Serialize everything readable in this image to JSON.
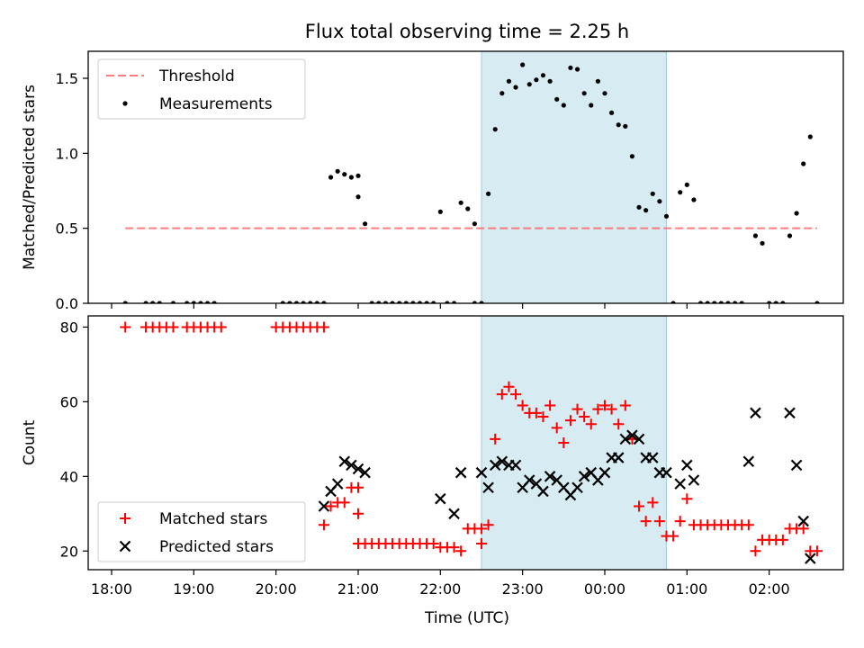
{
  "chart_data": {
    "type": "scatter",
    "title": "Flux total observing time = 2.25 h",
    "xlabel": "Time (UTC)",
    "x_ticks": [
      "18:00",
      "19:00",
      "20:00",
      "21:00",
      "22:00",
      "23:00",
      "00:00",
      "01:00",
      "02:00"
    ],
    "highlight_span": {
      "from": "22:30",
      "to": "00:45"
    },
    "panels": [
      {
        "ylabel": "Matched/Predicted stars",
        "ylim": [
          0,
          1.68
        ],
        "yticks": [
          "0.0",
          "0.5",
          "1.0",
          "1.5"
        ],
        "legend": "top-left",
        "threshold": {
          "name": "Threshold",
          "value": 0.5,
          "from": "18:10",
          "to": "02:35",
          "color": "#ff6666"
        },
        "series": [
          {
            "name": "Measurements",
            "color": "#000000",
            "points": [
              [
                "18:10",
                0
              ],
              [
                "18:25",
                0
              ],
              [
                "18:30",
                0
              ],
              [
                "18:35",
                0
              ],
              [
                "18:45",
                0
              ],
              [
                "18:55",
                0
              ],
              [
                "19:00",
                0
              ],
              [
                "19:05",
                0
              ],
              [
                "19:10",
                0
              ],
              [
                "19:15",
                0
              ],
              [
                "20:05",
                0
              ],
              [
                "20:10",
                0
              ],
              [
                "20:15",
                0
              ],
              [
                "20:20",
                0
              ],
              [
                "20:25",
                0
              ],
              [
                "20:30",
                0
              ],
              [
                "20:35",
                0
              ],
              [
                "20:40",
                0.84
              ],
              [
                "20:45",
                0.88
              ],
              [
                "20:50",
                0.86
              ],
              [
                "20:55",
                0.84
              ],
              [
                "21:00",
                0.85
              ],
              [
                "21:00",
                0.71
              ],
              [
                "21:05",
                0.53
              ],
              [
                "21:10",
                0
              ],
              [
                "21:15",
                0
              ],
              [
                "21:20",
                0
              ],
              [
                "21:25",
                0
              ],
              [
                "21:30",
                0
              ],
              [
                "21:35",
                0
              ],
              [
                "21:40",
                0
              ],
              [
                "21:45",
                0
              ],
              [
                "21:50",
                0
              ],
              [
                "21:55",
                0
              ],
              [
                "22:00",
                0.61
              ],
              [
                "22:05",
                0
              ],
              [
                "22:10",
                0
              ],
              [
                "22:15",
                0.67
              ],
              [
                "22:20",
                0.63
              ],
              [
                "22:25",
                0
              ],
              [
                "22:30",
                0
              ],
              [
                "22:25",
                0.53
              ],
              [
                "22:35",
                0.73
              ],
              [
                "22:40",
                1.16
              ],
              [
                "22:45",
                1.4
              ],
              [
                "22:50",
                1.48
              ],
              [
                "22:55",
                1.44
              ],
              [
                "23:00",
                1.59
              ],
              [
                "23:05",
                1.46
              ],
              [
                "23:10",
                1.49
              ],
              [
                "23:15",
                1.52
              ],
              [
                "23:20",
                1.48
              ],
              [
                "23:25",
                1.36
              ],
              [
                "23:30",
                1.32
              ],
              [
                "23:35",
                1.57
              ],
              [
                "23:40",
                1.56
              ],
              [
                "23:45",
                1.4
              ],
              [
                "23:50",
                1.32
              ],
              [
                "23:55",
                1.48
              ],
              [
                "00:00",
                1.4
              ],
              [
                "00:05",
                1.27
              ],
              [
                "00:10",
                1.19
              ],
              [
                "00:15",
                1.18
              ],
              [
                "00:20",
                0.98
              ],
              [
                "00:25",
                0.64
              ],
              [
                "00:30",
                0.62
              ],
              [
                "00:35",
                0.73
              ],
              [
                "00:40",
                0.68
              ],
              [
                "00:45",
                0.58
              ],
              [
                "00:50",
                0
              ],
              [
                "00:55",
                0.74
              ],
              [
                "01:00",
                0.79
              ],
              [
                "01:05",
                0.69
              ],
              [
                "01:10",
                0
              ],
              [
                "01:15",
                0
              ],
              [
                "01:20",
                0
              ],
              [
                "01:25",
                0
              ],
              [
                "01:30",
                0
              ],
              [
                "01:35",
                0
              ],
              [
                "01:40",
                0
              ],
              [
                "01:50",
                0.45
              ],
              [
                "01:55",
                0.4
              ],
              [
                "02:00",
                0
              ],
              [
                "02:05",
                0
              ],
              [
                "02:10",
                0
              ],
              [
                "02:15",
                0.45
              ],
              [
                "02:20",
                0.6
              ],
              [
                "02:25",
                0.93
              ],
              [
                "02:30",
                1.11
              ],
              [
                "02:35",
                0
              ]
            ]
          }
        ]
      },
      {
        "ylabel": "Count",
        "ylim": [
          15,
          83
        ],
        "yticks": [
          "20",
          "40",
          "60",
          "80"
        ],
        "legend": "bottom-left",
        "series": [
          {
            "name": "Matched stars",
            "color": "#ff0000",
            "marker": "plus",
            "points": [
              [
                "18:10",
                80
              ],
              [
                "18:25",
                80
              ],
              [
                "18:30",
                80
              ],
              [
                "18:35",
                80
              ],
              [
                "18:40",
                80
              ],
              [
                "18:45",
                80
              ],
              [
                "18:55",
                80
              ],
              [
                "19:00",
                80
              ],
              [
                "19:05",
                80
              ],
              [
                "19:10",
                80
              ],
              [
                "19:15",
                80
              ],
              [
                "19:20",
                80
              ],
              [
                "20:00",
                80
              ],
              [
                "20:05",
                80
              ],
              [
                "20:10",
                80
              ],
              [
                "20:15",
                80
              ],
              [
                "20:20",
                80
              ],
              [
                "20:25",
                80
              ],
              [
                "20:30",
                80
              ],
              [
                "20:35",
                80
              ],
              [
                "20:35",
                27
              ],
              [
                "20:40",
                32
              ],
              [
                "20:45",
                33
              ],
              [
                "20:50",
                33
              ],
              [
                "20:55",
                37
              ],
              [
                "21:00",
                37
              ],
              [
                "21:00",
                30
              ],
              [
                "21:00",
                22
              ],
              [
                "21:05",
                22
              ],
              [
                "21:10",
                22
              ],
              [
                "21:15",
                22
              ],
              [
                "21:20",
                22
              ],
              [
                "21:25",
                22
              ],
              [
                "21:30",
                22
              ],
              [
                "21:35",
                22
              ],
              [
                "21:40",
                22
              ],
              [
                "21:45",
                22
              ],
              [
                "21:50",
                22
              ],
              [
                "21:55",
                22
              ],
              [
                "22:00",
                21
              ],
              [
                "22:05",
                21
              ],
              [
                "22:10",
                21
              ],
              [
                "22:15",
                20
              ],
              [
                "22:20",
                26
              ],
              [
                "22:25",
                26
              ],
              [
                "22:30",
                26
              ],
              [
                "22:30",
                22
              ],
              [
                "22:35",
                27
              ],
              [
                "22:40",
                50
              ],
              [
                "22:45",
                62
              ],
              [
                "22:50",
                64
              ],
              [
                "22:55",
                62
              ],
              [
                "23:00",
                59
              ],
              [
                "23:05",
                57
              ],
              [
                "23:10",
                57
              ],
              [
                "23:15",
                56
              ],
              [
                "23:20",
                59
              ],
              [
                "23:25",
                53
              ],
              [
                "23:30",
                49
              ],
              [
                "23:35",
                55
              ],
              [
                "23:40",
                58
              ],
              [
                "23:45",
                56
              ],
              [
                "23:50",
                54
              ],
              [
                "23:55",
                58
              ],
              [
                "00:00",
                59
              ],
              [
                "00:05",
                58
              ],
              [
                "00:10",
                54
              ],
              [
                "00:15",
                59
              ],
              [
                "00:20",
                50
              ],
              [
                "00:25",
                32
              ],
              [
                "00:30",
                28
              ],
              [
                "00:35",
                33
              ],
              [
                "00:40",
                28
              ],
              [
                "00:45",
                24
              ],
              [
                "00:50",
                24
              ],
              [
                "00:55",
                28
              ],
              [
                "01:00",
                34
              ],
              [
                "01:05",
                27
              ],
              [
                "01:10",
                27
              ],
              [
                "01:15",
                27
              ],
              [
                "01:20",
                27
              ],
              [
                "01:25",
                27
              ],
              [
                "01:30",
                27
              ],
              [
                "01:35",
                27
              ],
              [
                "01:40",
                27
              ],
              [
                "01:45",
                27
              ],
              [
                "01:50",
                20
              ],
              [
                "01:55",
                23
              ],
              [
                "02:00",
                23
              ],
              [
                "02:05",
                23
              ],
              [
                "02:10",
                23
              ],
              [
                "02:15",
                26
              ],
              [
                "02:20",
                26
              ],
              [
                "02:25",
                26
              ],
              [
                "02:30",
                20
              ],
              [
                "02:35",
                20
              ]
            ]
          },
          {
            "name": "Predicted stars",
            "color": "#000000",
            "marker": "x",
            "points": [
              [
                "20:35",
                32
              ],
              [
                "20:40",
                36
              ],
              [
                "20:45",
                38
              ],
              [
                "20:50",
                44
              ],
              [
                "20:55",
                43
              ],
              [
                "21:00",
                42
              ],
              [
                "21:05",
                41
              ],
              [
                "22:00",
                34
              ],
              [
                "22:10",
                30
              ],
              [
                "22:15",
                41
              ],
              [
                "22:30",
                41
              ],
              [
                "22:35",
                37
              ],
              [
                "22:40",
                43
              ],
              [
                "22:45",
                44
              ],
              [
                "22:50",
                43
              ],
              [
                "22:55",
                43
              ],
              [
                "23:00",
                37
              ],
              [
                "23:05",
                39
              ],
              [
                "23:10",
                38
              ],
              [
                "23:15",
                36
              ],
              [
                "23:20",
                40
              ],
              [
                "23:25",
                39
              ],
              [
                "23:30",
                37
              ],
              [
                "23:35",
                35
              ],
              [
                "23:40",
                37
              ],
              [
                "23:45",
                40
              ],
              [
                "23:50",
                41
              ],
              [
                "23:55",
                39
              ],
              [
                "00:00",
                41
              ],
              [
                "00:05",
                45
              ],
              [
                "00:10",
                45
              ],
              [
                "00:15",
                50
              ],
              [
                "00:20",
                51
              ],
              [
                "00:25",
                50
              ],
              [
                "00:30",
                45
              ],
              [
                "00:35",
                45
              ],
              [
                "00:40",
                41
              ],
              [
                "00:45",
                41
              ],
              [
                "00:55",
                38
              ],
              [
                "01:00",
                43
              ],
              [
                "01:05",
                39
              ],
              [
                "01:45",
                44
              ],
              [
                "01:50",
                57
              ],
              [
                "02:15",
                57
              ],
              [
                "02:20",
                43
              ],
              [
                "02:25",
                28
              ],
              [
                "02:30",
                18
              ]
            ]
          }
        ]
      }
    ]
  }
}
